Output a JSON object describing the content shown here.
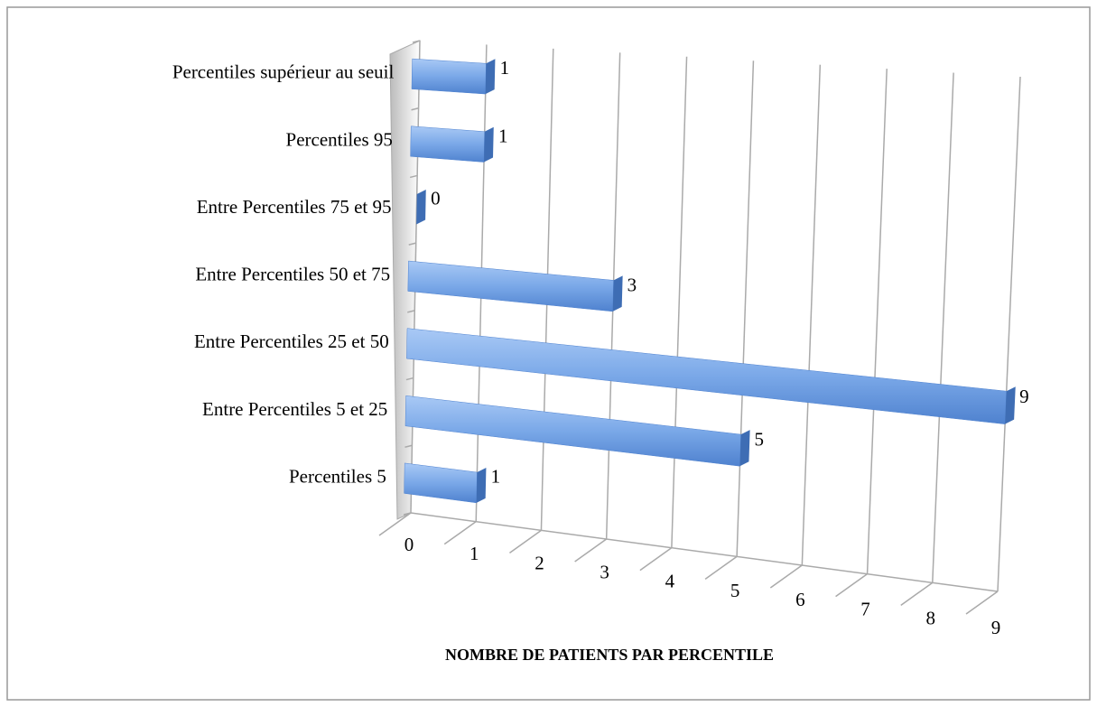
{
  "chart_data": {
    "type": "bar3d_horizontal",
    "categories": [
      "Percentiles supérieur au seuil",
      "Percentiles 95",
      "Entre Percentiles 75 et 95",
      "Entre Percentiles 50 et 75",
      "Entre Percentiles 25 et 50",
      "Entre Percentiles 5 et 25",
      "Percentiles 5"
    ],
    "values": [
      1,
      1,
      0,
      3,
      9,
      5,
      1
    ],
    "color": "#6f9fe0",
    "xlim": [
      0,
      9
    ],
    "xticks": [
      0,
      1,
      2,
      3,
      4,
      5,
      6,
      7,
      8,
      9
    ],
    "xlabel": "NOMBRE DE PATIENTS PAR PERCENTILE",
    "grid": true
  }
}
